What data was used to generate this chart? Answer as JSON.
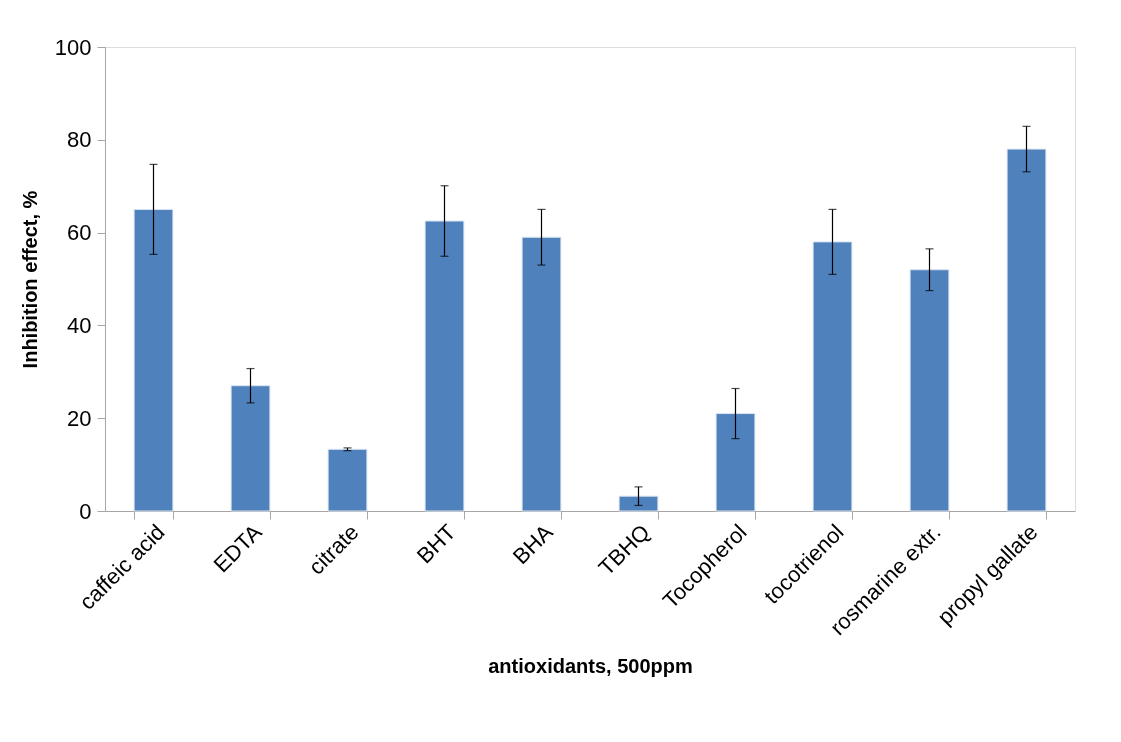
{
  "chart_data": {
    "type": "bar",
    "xlabel": "antioxidants, 500ppm",
    "ylabel": "Inhibition effect, %",
    "categories": [
      "caffeic acid",
      "EDTA",
      "citrate",
      "BHT",
      "BHA",
      "TBHQ",
      "Tocopherol",
      "tocotrienol",
      "rosmarine extr.",
      "propyl gallate"
    ],
    "values": [
      65,
      27,
      13.3,
      62.5,
      59,
      3.2,
      21,
      58,
      52,
      78
    ],
    "errors": [
      9.7,
      3.7,
      0.3,
      7.6,
      6,
      2,
      5.4,
      7,
      4.5,
      4.9
    ],
    "color": "#4f81bd",
    "ylim": [
      0,
      100
    ],
    "yticks": [
      0,
      20,
      40,
      60,
      80,
      100
    ],
    "grid": false
  }
}
